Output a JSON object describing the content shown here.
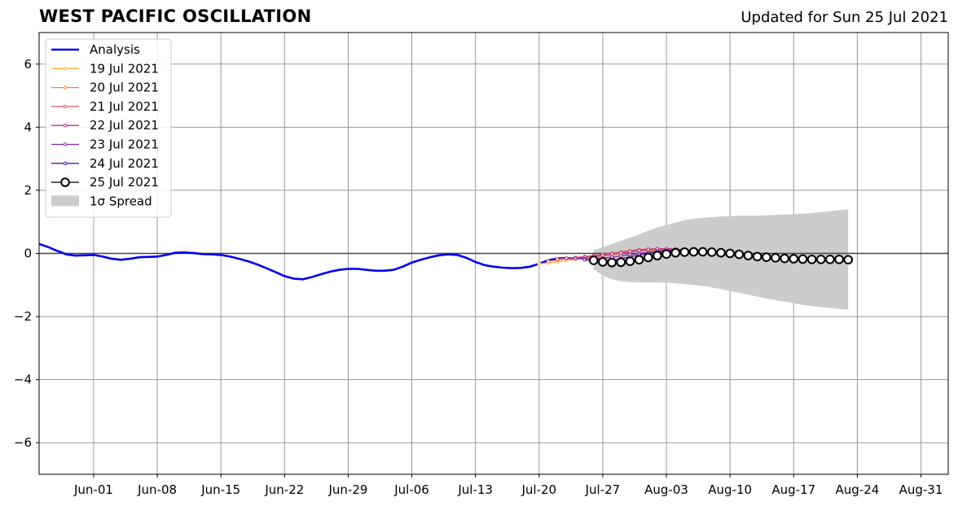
{
  "header": {
    "title": "WEST PACIFIC OSCILLATION",
    "updated": "Updated for Sun 25 Jul 2021"
  },
  "chart_data": {
    "type": "line",
    "title": "WEST PACIFIC OSCILLATION",
    "subtitle": "Updated for Sun 25 Jul 2021",
    "xlabel": "",
    "ylabel": "",
    "xlim": [
      "2021-05-26",
      "2021-09-03"
    ],
    "ylim": [
      -7,
      7
    ],
    "grid": true,
    "legend_position": "upper-left",
    "x_ticks": [
      {
        "date": "2021-06-01",
        "label": "Jun-01"
      },
      {
        "date": "2021-06-08",
        "label": "Jun-08"
      },
      {
        "date": "2021-06-15",
        "label": "Jun-15"
      },
      {
        "date": "2021-06-22",
        "label": "Jun-22"
      },
      {
        "date": "2021-06-29",
        "label": "Jun-29"
      },
      {
        "date": "2021-07-06",
        "label": "Jul-06"
      },
      {
        "date": "2021-07-13",
        "label": "Jul-13"
      },
      {
        "date": "2021-07-20",
        "label": "Jul-20"
      },
      {
        "date": "2021-07-27",
        "label": "Jul-27"
      },
      {
        "date": "2021-08-03",
        "label": "Aug-03"
      },
      {
        "date": "2021-08-10",
        "label": "Aug-10"
      },
      {
        "date": "2021-08-17",
        "label": "Aug-17"
      },
      {
        "date": "2021-08-24",
        "label": "Aug-24"
      },
      {
        "date": "2021-08-31",
        "label": "Aug-31"
      }
    ],
    "y_ticks": [
      {
        "value": 6,
        "label": "6"
      },
      {
        "value": 4,
        "label": "4"
      },
      {
        "value": 2,
        "label": "2"
      },
      {
        "value": 0,
        "label": "0"
      },
      {
        "value": -2,
        "label": "−2"
      },
      {
        "value": -4,
        "label": "−4"
      },
      {
        "value": -6,
        "label": "−6"
      }
    ],
    "series": [
      {
        "name": "Analysis",
        "color": "#0000ee",
        "x": [
          "2021-05-26",
          "2021-05-27",
          "2021-05-28",
          "2021-05-29",
          "2021-05-30",
          "2021-05-31",
          "2021-06-01",
          "2021-06-02",
          "2021-06-03",
          "2021-06-04",
          "2021-06-05",
          "2021-06-06",
          "2021-06-07",
          "2021-06-08",
          "2021-06-09",
          "2021-06-10",
          "2021-06-11",
          "2021-06-12",
          "2021-06-13",
          "2021-06-14",
          "2021-06-15",
          "2021-06-16",
          "2021-06-17",
          "2021-06-18",
          "2021-06-19",
          "2021-06-20",
          "2021-06-21",
          "2021-06-22",
          "2021-06-23",
          "2021-06-24",
          "2021-06-25",
          "2021-06-26",
          "2021-06-27",
          "2021-06-28",
          "2021-06-29",
          "2021-06-30",
          "2021-07-01",
          "2021-07-02",
          "2021-07-03",
          "2021-07-04",
          "2021-07-05",
          "2021-07-06",
          "2021-07-07",
          "2021-07-08",
          "2021-07-09",
          "2021-07-10",
          "2021-07-11",
          "2021-07-12",
          "2021-07-13",
          "2021-07-14",
          "2021-07-15",
          "2021-07-16",
          "2021-07-17",
          "2021-07-18",
          "2021-07-19",
          "2021-07-20",
          "2021-07-21",
          "2021-07-22",
          "2021-07-23",
          "2021-07-24",
          "2021-07-25"
        ],
        "values": [
          0.3,
          0.2,
          0.08,
          -0.03,
          -0.07,
          -0.06,
          -0.05,
          -0.1,
          -0.17,
          -0.2,
          -0.17,
          -0.12,
          -0.11,
          -0.1,
          -0.05,
          0.02,
          0.03,
          0.01,
          -0.02,
          -0.03,
          -0.05,
          -0.1,
          -0.17,
          -0.25,
          -0.35,
          -0.47,
          -0.59,
          -0.72,
          -0.8,
          -0.82,
          -0.75,
          -0.66,
          -0.58,
          -0.52,
          -0.49,
          -0.49,
          -0.52,
          -0.55,
          -0.55,
          -0.52,
          -0.42,
          -0.29,
          -0.2,
          -0.12,
          -0.06,
          -0.03,
          -0.05,
          -0.14,
          -0.27,
          -0.37,
          -0.42,
          -0.45,
          -0.47,
          -0.46,
          -0.42,
          -0.33,
          -0.22,
          -0.16,
          -0.15,
          -0.16,
          -0.15
        ]
      },
      {
        "name": "19 Jul 2021",
        "color": "#f9b341",
        "x": [
          "2021-07-20",
          "2021-07-21",
          "2021-07-22",
          "2021-07-23",
          "2021-07-24",
          "2021-07-25",
          "2021-07-26",
          "2021-07-27",
          "2021-07-28",
          "2021-07-29",
          "2021-07-30",
          "2021-07-31",
          "2021-08-01",
          "2021-08-02",
          "2021-08-03",
          "2021-08-04",
          "2021-08-05",
          "2021-08-06",
          "2021-08-07",
          "2021-08-08",
          "2021-08-09",
          "2021-08-10",
          "2021-08-11",
          "2021-08-12",
          "2021-08-13",
          "2021-08-14",
          "2021-08-15"
        ],
        "values": [
          -0.33,
          -0.3,
          -0.26,
          -0.22,
          -0.19,
          -0.16,
          -0.12,
          -0.08,
          -0.04,
          0.0,
          0.04,
          0.07,
          0.09,
          0.1,
          0.1,
          0.09,
          0.08,
          0.06,
          0.03,
          0.0,
          -0.03,
          -0.06,
          -0.09,
          -0.11,
          -0.13,
          -0.15,
          -0.16
        ]
      },
      {
        "name": "20 Jul 2021",
        "color": "#f3814e",
        "x": [
          "2021-07-21",
          "2021-07-22",
          "2021-07-23",
          "2021-07-24",
          "2021-07-25",
          "2021-07-26",
          "2021-07-27",
          "2021-07-28",
          "2021-07-29",
          "2021-07-30",
          "2021-07-31",
          "2021-08-01",
          "2021-08-02",
          "2021-08-03",
          "2021-08-04",
          "2021-08-05",
          "2021-08-06",
          "2021-08-07",
          "2021-08-08",
          "2021-08-09",
          "2021-08-10",
          "2021-08-11",
          "2021-08-12",
          "2021-08-13",
          "2021-08-14",
          "2021-08-15",
          "2021-08-16"
        ],
        "values": [
          -0.25,
          -0.21,
          -0.17,
          -0.14,
          -0.11,
          -0.08,
          -0.05,
          -0.01,
          0.03,
          0.06,
          0.09,
          0.11,
          0.12,
          0.12,
          0.11,
          0.1,
          0.08,
          0.05,
          0.02,
          -0.01,
          -0.04,
          -0.07,
          -0.1,
          -0.12,
          -0.14,
          -0.15,
          -0.16
        ]
      },
      {
        "name": "21 Jul 2021",
        "color": "#dc5a6e",
        "x": [
          "2021-07-22",
          "2021-07-23",
          "2021-07-24",
          "2021-07-25",
          "2021-07-26",
          "2021-07-27",
          "2021-07-28",
          "2021-07-29",
          "2021-07-30",
          "2021-07-31",
          "2021-08-01",
          "2021-08-02",
          "2021-08-03",
          "2021-08-04",
          "2021-08-05",
          "2021-08-06",
          "2021-08-07",
          "2021-08-08",
          "2021-08-09",
          "2021-08-10",
          "2021-08-11",
          "2021-08-12",
          "2021-08-13",
          "2021-08-14",
          "2021-08-15",
          "2021-08-16",
          "2021-08-17"
        ],
        "values": [
          -0.18,
          -0.16,
          -0.13,
          -0.1,
          -0.07,
          -0.03,
          0.01,
          0.05,
          0.09,
          0.12,
          0.14,
          0.15,
          0.15,
          0.14,
          0.12,
          0.09,
          0.06,
          0.03,
          0.0,
          -0.03,
          -0.06,
          -0.09,
          -0.11,
          -0.13,
          -0.14,
          -0.15,
          -0.16
        ]
      },
      {
        "name": "22 Jul 2021",
        "color": "#b7378c",
        "x": [
          "2021-07-23",
          "2021-07-24",
          "2021-07-25",
          "2021-07-26",
          "2021-07-27",
          "2021-07-28",
          "2021-07-29",
          "2021-07-30",
          "2021-07-31",
          "2021-08-01",
          "2021-08-02",
          "2021-08-03",
          "2021-08-04",
          "2021-08-05",
          "2021-08-06",
          "2021-08-07",
          "2021-08-08",
          "2021-08-09",
          "2021-08-10",
          "2021-08-11",
          "2021-08-12",
          "2021-08-13",
          "2021-08-14",
          "2021-08-15",
          "2021-08-16",
          "2021-08-17",
          "2021-08-18"
        ],
        "values": [
          -0.15,
          -0.14,
          -0.12,
          -0.1,
          -0.07,
          -0.03,
          0.01,
          0.05,
          0.09,
          0.12,
          0.14,
          0.15,
          0.14,
          0.12,
          0.1,
          0.07,
          0.04,
          0.01,
          -0.02,
          -0.05,
          -0.08,
          -0.1,
          -0.12,
          -0.14,
          -0.15,
          -0.16,
          -0.17
        ]
      },
      {
        "name": "23 Jul 2021",
        "color": "#8e24a6",
        "x": [
          "2021-07-24",
          "2021-07-25",
          "2021-07-26",
          "2021-07-27",
          "2021-07-28",
          "2021-07-29",
          "2021-07-30",
          "2021-07-31",
          "2021-08-01",
          "2021-08-02",
          "2021-08-03",
          "2021-08-04",
          "2021-08-05",
          "2021-08-06",
          "2021-08-07",
          "2021-08-08",
          "2021-08-09",
          "2021-08-10",
          "2021-08-11",
          "2021-08-12",
          "2021-08-13",
          "2021-08-14",
          "2021-08-15",
          "2021-08-16",
          "2021-08-17",
          "2021-08-18",
          "2021-08-19"
        ],
        "values": [
          -0.16,
          -0.17,
          -0.17,
          -0.15,
          -0.12,
          -0.08,
          -0.04,
          0.0,
          0.04,
          0.08,
          0.1,
          0.11,
          0.11,
          0.1,
          0.08,
          0.05,
          0.02,
          -0.01,
          -0.04,
          -0.07,
          -0.1,
          -0.12,
          -0.14,
          -0.15,
          -0.16,
          -0.17,
          -0.18
        ]
      },
      {
        "name": "24 Jul 2021",
        "color": "#55189c",
        "x": [
          "2021-07-25",
          "2021-07-26",
          "2021-07-27",
          "2021-07-28",
          "2021-07-29",
          "2021-07-30",
          "2021-07-31",
          "2021-08-01",
          "2021-08-02",
          "2021-08-03",
          "2021-08-04",
          "2021-08-05",
          "2021-08-06",
          "2021-08-07",
          "2021-08-08",
          "2021-08-09",
          "2021-08-10",
          "2021-08-11",
          "2021-08-12",
          "2021-08-13",
          "2021-08-14",
          "2021-08-15",
          "2021-08-16",
          "2021-08-17",
          "2021-08-18",
          "2021-08-19",
          "2021-08-20"
        ],
        "values": [
          -0.2,
          -0.24,
          -0.25,
          -0.22,
          -0.17,
          -0.11,
          -0.05,
          0.0,
          0.04,
          0.07,
          0.09,
          0.09,
          0.08,
          0.06,
          0.03,
          0.0,
          -0.03,
          -0.06,
          -0.09,
          -0.11,
          -0.13,
          -0.15,
          -0.16,
          -0.17,
          -0.18,
          -0.18,
          -0.19
        ]
      },
      {
        "name": "25 Jul 2021",
        "color": "#000000",
        "x": [
          "2021-07-26",
          "2021-07-27",
          "2021-07-28",
          "2021-07-29",
          "2021-07-30",
          "2021-07-31",
          "2021-08-01",
          "2021-08-02",
          "2021-08-03",
          "2021-08-04",
          "2021-08-05",
          "2021-08-06",
          "2021-08-07",
          "2021-08-08",
          "2021-08-09",
          "2021-08-10",
          "2021-08-11",
          "2021-08-12",
          "2021-08-13",
          "2021-08-14",
          "2021-08-15",
          "2021-08-16",
          "2021-08-17",
          "2021-08-18",
          "2021-08-19",
          "2021-08-20",
          "2021-08-21",
          "2021-08-22",
          "2021-08-23"
        ],
        "values": [
          -0.22,
          -0.27,
          -0.29,
          -0.28,
          -0.25,
          -0.2,
          -0.13,
          -0.07,
          -0.02,
          0.02,
          0.04,
          0.05,
          0.05,
          0.04,
          0.02,
          0.0,
          -0.03,
          -0.07,
          -0.1,
          -0.12,
          -0.14,
          -0.16,
          -0.17,
          -0.18,
          -0.19,
          -0.19,
          -0.19,
          -0.19,
          -0.2
        ]
      }
    ],
    "spread": {
      "name": "1σ Spread",
      "color": "#cccccc",
      "x": [
        "2021-07-26",
        "2021-07-27",
        "2021-07-28",
        "2021-07-29",
        "2021-07-30",
        "2021-07-31",
        "2021-08-01",
        "2021-08-02",
        "2021-08-03",
        "2021-08-04",
        "2021-08-05",
        "2021-08-06",
        "2021-08-07",
        "2021-08-08",
        "2021-08-09",
        "2021-08-10",
        "2021-08-11",
        "2021-08-12",
        "2021-08-13",
        "2021-08-14",
        "2021-08-15",
        "2021-08-16",
        "2021-08-17",
        "2021-08-18",
        "2021-08-19",
        "2021-08-20",
        "2021-08-21",
        "2021-08-22",
        "2021-08-23"
      ],
      "upper": [
        0.1,
        0.2,
        0.3,
        0.4,
        0.5,
        0.6,
        0.72,
        0.82,
        0.9,
        0.98,
        1.05,
        1.1,
        1.13,
        1.15,
        1.17,
        1.18,
        1.19,
        1.2,
        1.2,
        1.21,
        1.22,
        1.23,
        1.24,
        1.26,
        1.28,
        1.31,
        1.34,
        1.37,
        1.4
      ],
      "lower": [
        -0.5,
        -0.7,
        -0.82,
        -0.88,
        -0.91,
        -0.92,
        -0.92,
        -0.92,
        -0.93,
        -0.95,
        -0.97,
        -1.0,
        -1.03,
        -1.08,
        -1.13,
        -1.19,
        -1.25,
        -1.31,
        -1.37,
        -1.43,
        -1.48,
        -1.53,
        -1.58,
        -1.63,
        -1.67,
        -1.7,
        -1.73,
        -1.76,
        -1.78
      ]
    }
  }
}
